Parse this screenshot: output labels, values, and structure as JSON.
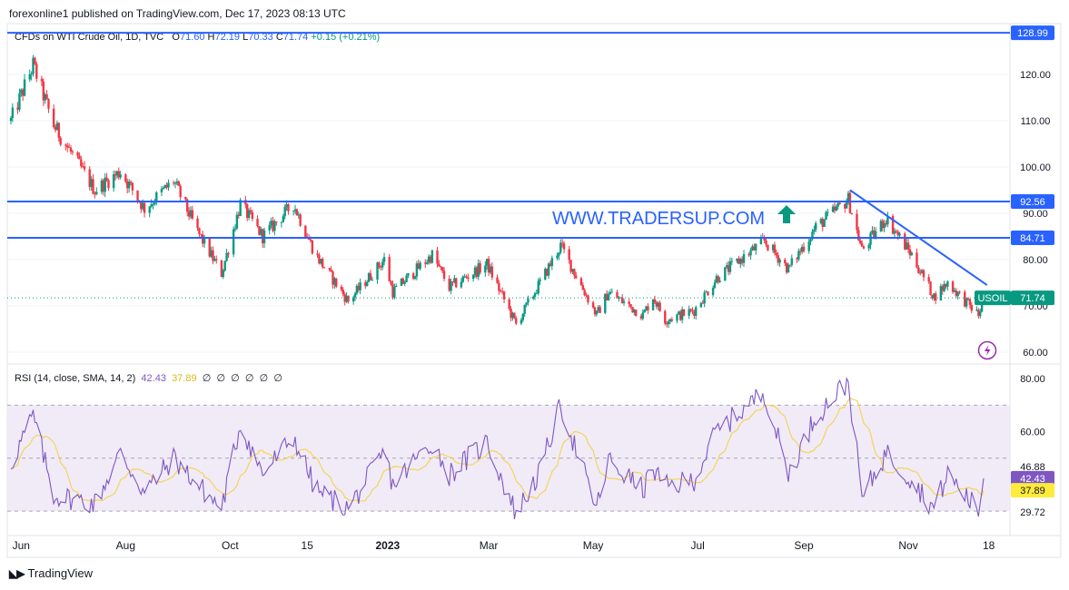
{
  "header": {
    "published_text": "forexonline1 published on TradingView.com, Dec 17, 2023 08:13 UTC"
  },
  "legend": {
    "symbol": "CFDs on WTI Crude Oil, 1D, TVC",
    "open_label": "O",
    "open": "71.60",
    "high_label": "H",
    "high": "72.19",
    "low_label": "L",
    "low": "70.33",
    "close_label": "C",
    "close": "71.74",
    "change": "+0.15 (+0.21%)"
  },
  "rsi_legend": {
    "label": "RSI (14, close, SMA, 14, 2)",
    "rsi_value": "42.43",
    "sma_value": "37.89",
    "placeholders": [
      "∅",
      "∅",
      "∅",
      "∅",
      "∅",
      "∅"
    ]
  },
  "watermark": {
    "text": "WWW.TRADERSUP.COM"
  },
  "footer": {
    "brand": "TradingView"
  },
  "colors": {
    "up": "#089981",
    "down": "#f23645",
    "line": "#2962ff",
    "rsi": "#7e57c2",
    "rsi_sma": "#f5d45a",
    "rsi_band": "#ede7f6"
  },
  "chart_data": [
    {
      "type": "candlestick",
      "title": "CFDs on WTI Crude Oil, 1D, TVC",
      "x_tick_labels": [
        "Jun",
        "Aug",
        "Oct",
        "15",
        "2023",
        "Mar",
        "May",
        "Jul",
        "Sep",
        "Nov",
        "18"
      ],
      "y_tick_labels": [
        "60.00",
        "70.00",
        "80.00",
        "90.00",
        "100.00",
        "110.00",
        "120.00"
      ],
      "ylim": [
        57.5,
        130.5
      ],
      "price_levels": [
        {
          "label": "128.99",
          "value": 128.99
        },
        {
          "label": "92.56",
          "value": 92.56
        },
        {
          "label": "84.71",
          "value": 84.71
        }
      ],
      "current_price": {
        "symbol": "USOIL",
        "value": 71.74,
        "label": "71.74"
      },
      "trendline": {
        "from": {
          "date": "2023-09-28",
          "price": 95.0
        },
        "to": {
          "date": "2023-12-17",
          "price": 74.5
        }
      },
      "anchors": [
        {
          "date": "2022-05-26",
          "price": 110
        },
        {
          "date": "2022-06-08",
          "price": 122
        },
        {
          "date": "2022-06-20",
          "price": 109
        },
        {
          "date": "2022-07-14",
          "price": 95
        },
        {
          "date": "2022-07-29",
          "price": 99
        },
        {
          "date": "2022-08-12",
          "price": 91
        },
        {
          "date": "2022-08-29",
          "price": 97
        },
        {
          "date": "2022-09-12",
          "price": 86
        },
        {
          "date": "2022-09-26",
          "price": 77
        },
        {
          "date": "2022-10-07",
          "price": 92
        },
        {
          "date": "2022-10-20",
          "price": 85
        },
        {
          "date": "2022-11-07",
          "price": 92
        },
        {
          "date": "2022-11-20",
          "price": 81
        },
        {
          "date": "2022-12-09",
          "price": 71
        },
        {
          "date": "2022-12-30",
          "price": 80
        },
        {
          "date": "2023-01-04",
          "price": 73
        },
        {
          "date": "2023-01-27",
          "price": 81
        },
        {
          "date": "2023-02-06",
          "price": 74
        },
        {
          "date": "2023-02-28",
          "price": 79
        },
        {
          "date": "2023-03-17",
          "price": 66
        },
        {
          "date": "2023-03-31",
          "price": 75
        },
        {
          "date": "2023-04-12",
          "price": 83
        },
        {
          "date": "2023-05-03",
          "price": 68
        },
        {
          "date": "2023-05-10",
          "price": 73
        },
        {
          "date": "2023-05-30",
          "price": 68
        },
        {
          "date": "2023-06-05",
          "price": 72
        },
        {
          "date": "2023-06-12",
          "price": 67
        },
        {
          "date": "2023-06-29",
          "price": 69
        },
        {
          "date": "2023-07-12",
          "price": 76
        },
        {
          "date": "2023-08-09",
          "price": 84
        },
        {
          "date": "2023-08-23",
          "price": 78
        },
        {
          "date": "2023-09-08",
          "price": 87
        },
        {
          "date": "2023-09-27",
          "price": 93
        },
        {
          "date": "2023-10-05",
          "price": 82
        },
        {
          "date": "2023-10-19",
          "price": 89
        },
        {
          "date": "2023-11-03",
          "price": 81
        },
        {
          "date": "2023-11-16",
          "price": 72
        },
        {
          "date": "2023-11-24",
          "price": 75
        },
        {
          "date": "2023-12-12",
          "price": 68
        },
        {
          "date": "2023-12-15",
          "price": 71.7
        }
      ]
    },
    {
      "type": "line",
      "title": "RSI (14, close, SMA, 14, 2)",
      "y_tick_labels": [
        "80.00",
        "60.00"
      ],
      "levels": [
        {
          "label": "46.88",
          "value": 46.88
        },
        {
          "label": "29.72",
          "value": 29.72
        }
      ],
      "band": [
        30,
        70
      ],
      "ylim": [
        25,
        83
      ],
      "current": {
        "rsi": 42.43,
        "sma": 37.89,
        "rsi_label": "42.43",
        "sma_label": "37.89"
      },
      "anchors": [
        {
          "date": "2022-05-26",
          "price": 48
        },
        {
          "date": "2022-06-08",
          "price": 66
        },
        {
          "date": "2022-06-20",
          "price": 36
        },
        {
          "date": "2022-07-14",
          "price": 33
        },
        {
          "date": "2022-07-29",
          "price": 52
        },
        {
          "date": "2022-08-12",
          "price": 37
        },
        {
          "date": "2022-08-29",
          "price": 50
        },
        {
          "date": "2022-09-12",
          "price": 40
        },
        {
          "date": "2022-09-26",
          "price": 31
        },
        {
          "date": "2022-10-07",
          "price": 63
        },
        {
          "date": "2022-10-20",
          "price": 44
        },
        {
          "date": "2022-11-07",
          "price": 58
        },
        {
          "date": "2022-11-20",
          "price": 38
        },
        {
          "date": "2022-12-09",
          "price": 31
        },
        {
          "date": "2022-12-30",
          "price": 52
        },
        {
          "date": "2023-01-04",
          "price": 40
        },
        {
          "date": "2023-01-27",
          "price": 56
        },
        {
          "date": "2023-02-06",
          "price": 44
        },
        {
          "date": "2023-02-28",
          "price": 56
        },
        {
          "date": "2023-03-17",
          "price": 29
        },
        {
          "date": "2023-03-31",
          "price": 45
        },
        {
          "date": "2023-04-12",
          "price": 70
        },
        {
          "date": "2023-05-03",
          "price": 31
        },
        {
          "date": "2023-05-10",
          "price": 49
        },
        {
          "date": "2023-05-30",
          "price": 38
        },
        {
          "date": "2023-06-05",
          "price": 46
        },
        {
          "date": "2023-06-12",
          "price": 39
        },
        {
          "date": "2023-06-29",
          "price": 42
        },
        {
          "date": "2023-07-12",
          "price": 60
        },
        {
          "date": "2023-08-09",
          "price": 75
        },
        {
          "date": "2023-08-23",
          "price": 44
        },
        {
          "date": "2023-09-08",
          "price": 66
        },
        {
          "date": "2023-09-27",
          "price": 79
        },
        {
          "date": "2023-10-05",
          "price": 35
        },
        {
          "date": "2023-10-19",
          "price": 52
        },
        {
          "date": "2023-11-03",
          "price": 42
        },
        {
          "date": "2023-11-16",
          "price": 31
        },
        {
          "date": "2023-11-24",
          "price": 44
        },
        {
          "date": "2023-12-12",
          "price": 30
        },
        {
          "date": "2023-12-15",
          "price": 42.43
        }
      ]
    }
  ]
}
